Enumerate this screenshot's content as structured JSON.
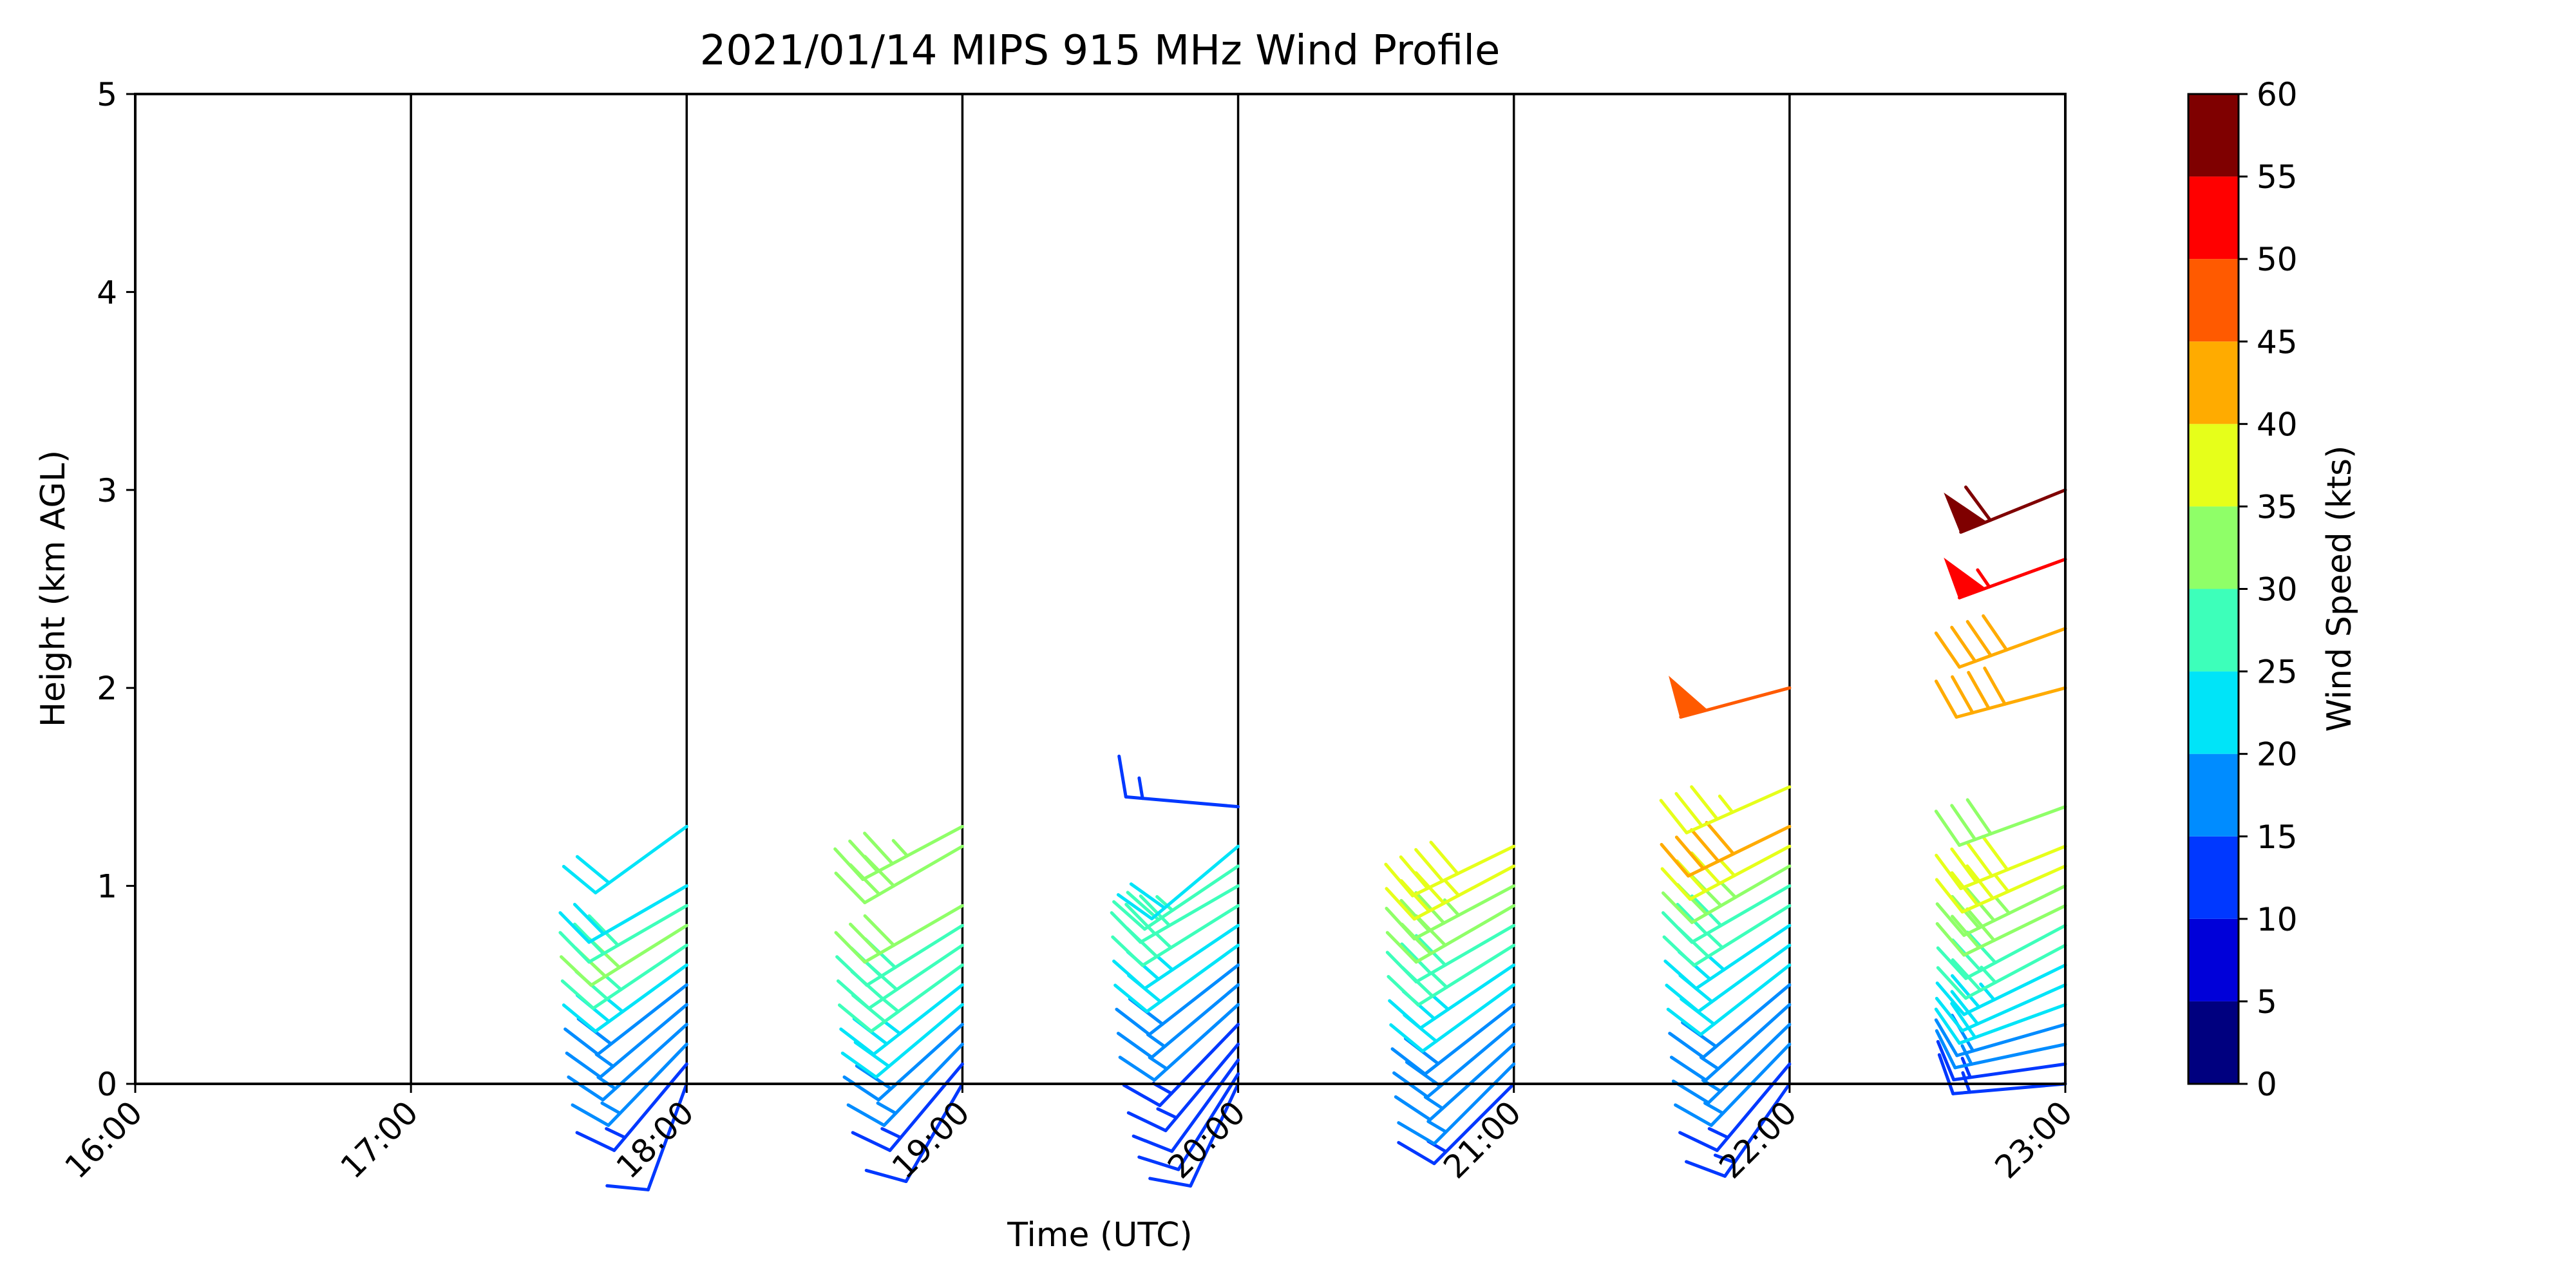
{
  "chart_data": {
    "type": "wind-barb",
    "title": "2021/01/14 MIPS 915 MHz Wind Profile",
    "xlabel": "Time (UTC)",
    "ylabel": "Height (km AGL)",
    "colorbar_label": "Wind Speed (kts)",
    "x_ticks": [
      "16:00",
      "17:00",
      "18:00",
      "19:00",
      "20:00",
      "21:00",
      "22:00",
      "23:00"
    ],
    "y_ticks": [
      "0",
      "1",
      "2",
      "3",
      "4",
      "5"
    ],
    "ylim": [
      0,
      5
    ],
    "grid": "vertical lines at each hour",
    "colorbar_levels": [
      0,
      5,
      10,
      15,
      20,
      25,
      30,
      35,
      40,
      45,
      50,
      55,
      60
    ],
    "colorbar_colors": [
      "#00007f",
      "#0000d9",
      "#0038ff",
      "#008cff",
      "#00e4f8",
      "#3dffba",
      "#8fff68",
      "#e6ff1a",
      "#ffab00",
      "#ff5a00",
      "#ff0000",
      "#7f0000"
    ],
    "units": {
      "height": "km AGL",
      "speed": "kts",
      "direction": "degrees (from)"
    },
    "profiles": [
      {
        "time": "18:00",
        "obs": [
          {
            "h": 0.0,
            "spd": 12,
            "dir": 200
          },
          {
            "h": 0.1,
            "spd": 14,
            "dir": 220
          },
          {
            "h": 0.2,
            "spd": 15,
            "dir": 224
          },
          {
            "h": 0.3,
            "spd": 16,
            "dir": 228
          },
          {
            "h": 0.4,
            "spd": 17,
            "dir": 230
          },
          {
            "h": 0.5,
            "spd": 19,
            "dir": 232
          },
          {
            "h": 0.6,
            "spd": 23,
            "dir": 234
          },
          {
            "h": 0.7,
            "spd": 27,
            "dir": 236
          },
          {
            "h": 0.8,
            "spd": 31,
            "dir": 238
          },
          {
            "h": 0.9,
            "spd": 29,
            "dir": 240
          },
          {
            "h": 1.0,
            "spd": 22,
            "dir": 240
          },
          {
            "h": 1.3,
            "spd": 22,
            "dir": 234
          }
        ]
      },
      {
        "time": "19:00",
        "obs": [
          {
            "h": 0.0,
            "spd": 12,
            "dir": 210
          },
          {
            "h": 0.1,
            "spd": 14,
            "dir": 220
          },
          {
            "h": 0.2,
            "spd": 16,
            "dir": 224
          },
          {
            "h": 0.3,
            "spd": 18,
            "dir": 228
          },
          {
            "h": 0.4,
            "spd": 21,
            "dir": 230
          },
          {
            "h": 0.5,
            "spd": 23,
            "dir": 232
          },
          {
            "h": 0.6,
            "spd": 26,
            "dir": 234
          },
          {
            "h": 0.7,
            "spd": 28,
            "dir": 236
          },
          {
            "h": 0.8,
            "spd": 29,
            "dir": 238
          },
          {
            "h": 0.9,
            "spd": 31,
            "dir": 240
          },
          {
            "h": 1.2,
            "spd": 32,
            "dir": 240
          },
          {
            "h": 1.3,
            "spd": 33,
            "dir": 242
          }
        ]
      },
      {
        "time": "20:00",
        "obs": [
          {
            "h": 0.0,
            "spd": 11,
            "dir": 205
          },
          {
            "h": 0.05,
            "spd": 12,
            "dir": 212
          },
          {
            "h": 0.12,
            "spd": 11,
            "dir": 216
          },
          {
            "h": 0.2,
            "spd": 13,
            "dir": 220
          },
          {
            "h": 0.3,
            "spd": 14,
            "dir": 224
          },
          {
            "h": 0.4,
            "spd": 16,
            "dir": 228
          },
          {
            "h": 0.5,
            "spd": 17,
            "dir": 230
          },
          {
            "h": 0.6,
            "spd": 19,
            "dir": 232
          },
          {
            "h": 0.7,
            "spd": 22,
            "dir": 234
          },
          {
            "h": 0.8,
            "spd": 24,
            "dir": 236
          },
          {
            "h": 0.9,
            "spd": 27,
            "dir": 238
          },
          {
            "h": 1.0,
            "spd": 29,
            "dir": 240
          },
          {
            "h": 1.1,
            "spd": 27,
            "dir": 236
          },
          {
            "h": 1.2,
            "spd": 22,
            "dir": 230
          },
          {
            "h": 1.4,
            "spd": 13,
            "dir": 275
          }
        ]
      },
      {
        "time": "21:00",
        "obs": [
          {
            "h": 0.0,
            "spd": 13,
            "dir": 225
          },
          {
            "h": 0.1,
            "spd": 15,
            "dir": 225
          },
          {
            "h": 0.2,
            "spd": 17,
            "dir": 228
          },
          {
            "h": 0.3,
            "spd": 18,
            "dir": 230
          },
          {
            "h": 0.4,
            "spd": 19,
            "dir": 232
          },
          {
            "h": 0.5,
            "spd": 21,
            "dir": 234
          },
          {
            "h": 0.6,
            "spd": 23,
            "dir": 236
          },
          {
            "h": 0.7,
            "spd": 26,
            "dir": 238
          },
          {
            "h": 0.8,
            "spd": 28,
            "dir": 240
          },
          {
            "h": 0.9,
            "spd": 31,
            "dir": 240
          },
          {
            "h": 1.0,
            "spd": 34,
            "dir": 242
          },
          {
            "h": 1.1,
            "spd": 36,
            "dir": 242
          },
          {
            "h": 1.2,
            "spd": 38,
            "dir": 244
          }
        ]
      },
      {
        "time": "22:00",
        "obs": [
          {
            "h": 0.0,
            "spd": 13,
            "dir": 215
          },
          {
            "h": 0.1,
            "spd": 14,
            "dir": 220
          },
          {
            "h": 0.2,
            "spd": 15,
            "dir": 224
          },
          {
            "h": 0.3,
            "spd": 16,
            "dir": 226
          },
          {
            "h": 0.4,
            "spd": 17,
            "dir": 228
          },
          {
            "h": 0.5,
            "spd": 18,
            "dir": 230
          },
          {
            "h": 0.6,
            "spd": 20,
            "dir": 232
          },
          {
            "h": 0.7,
            "spd": 22,
            "dir": 234
          },
          {
            "h": 0.8,
            "spd": 24,
            "dir": 236
          },
          {
            "h": 0.9,
            "spd": 27,
            "dir": 238
          },
          {
            "h": 1.0,
            "spd": 29,
            "dir": 240
          },
          {
            "h": 1.1,
            "spd": 33,
            "dir": 240
          },
          {
            "h": 1.2,
            "spd": 37,
            "dir": 242
          },
          {
            "h": 1.3,
            "spd": 42,
            "dir": 244
          },
          {
            "h": 1.5,
            "spd": 37,
            "dir": 246
          },
          {
            "h": 2.0,
            "spd": 48,
            "dir": 255
          }
        ]
      },
      {
        "time": "23:00",
        "obs": [
          {
            "h": 0.0,
            "spd": 13,
            "dir": 265
          },
          {
            "h": 0.1,
            "spd": 14,
            "dir": 262
          },
          {
            "h": 0.2,
            "spd": 16,
            "dir": 258
          },
          {
            "h": 0.3,
            "spd": 18,
            "dir": 254
          },
          {
            "h": 0.4,
            "spd": 20,
            "dir": 250
          },
          {
            "h": 0.5,
            "spd": 22,
            "dir": 246
          },
          {
            "h": 0.6,
            "spd": 23,
            "dir": 244
          },
          {
            "h": 0.7,
            "spd": 26,
            "dir": 242
          },
          {
            "h": 0.8,
            "spd": 28,
            "dir": 242
          },
          {
            "h": 0.9,
            "spd": 31,
            "dir": 244
          },
          {
            "h": 1.0,
            "spd": 34,
            "dir": 244
          },
          {
            "h": 1.1,
            "spd": 36,
            "dir": 246
          },
          {
            "h": 1.2,
            "spd": 38,
            "dir": 248
          },
          {
            "h": 1.4,
            "spd": 32,
            "dir": 250
          },
          {
            "h": 2.0,
            "spd": 42,
            "dir": 255
          },
          {
            "h": 2.3,
            "spd": 42,
            "dir": 250
          },
          {
            "h": 2.65,
            "spd": 53,
            "dir": 250
          },
          {
            "h": 3.0,
            "spd": 58,
            "dir": 248
          }
        ]
      }
    ]
  }
}
